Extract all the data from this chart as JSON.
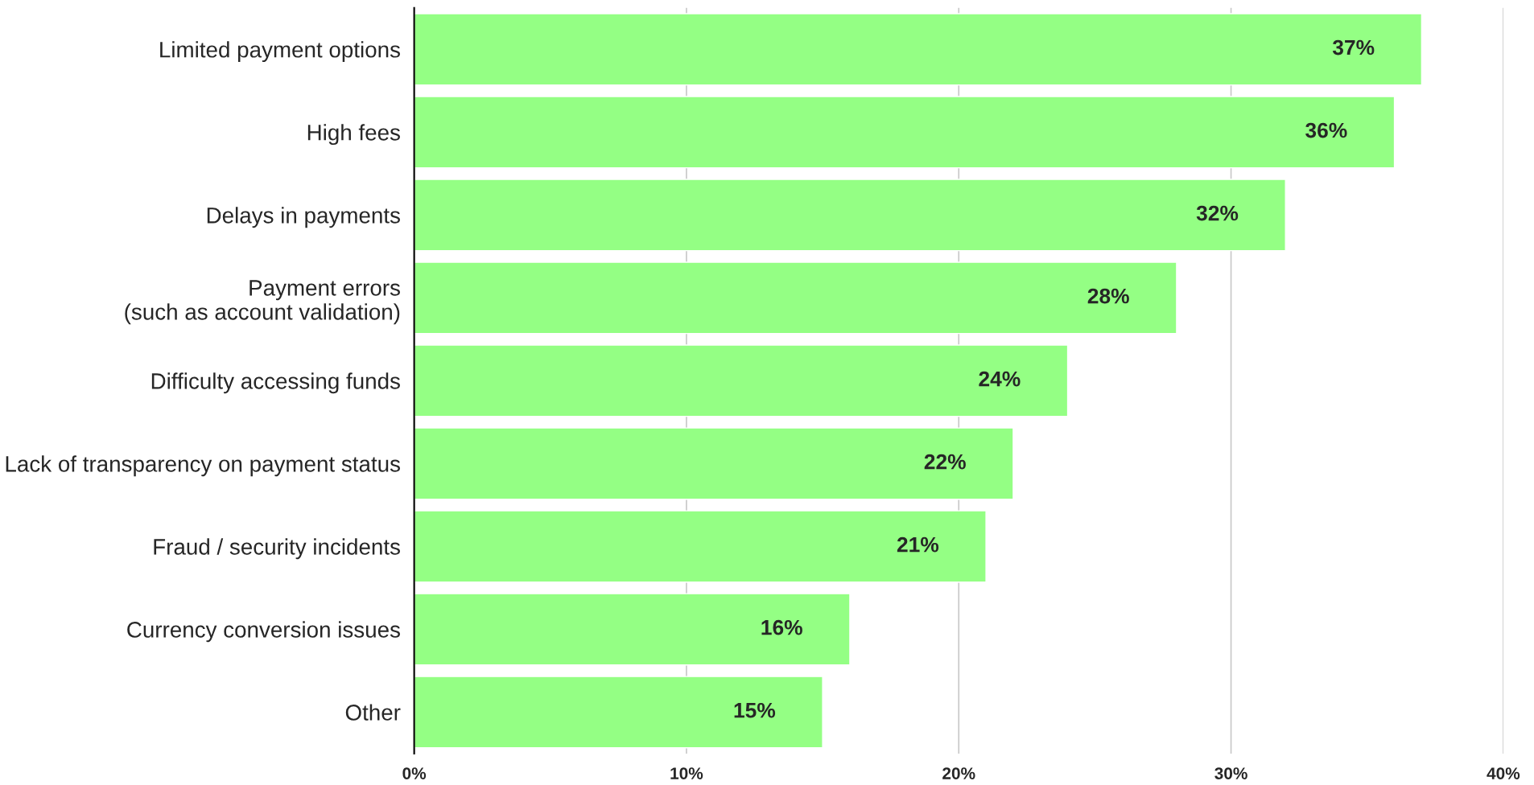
{
  "chart_data": {
    "type": "bar",
    "orientation": "horizontal",
    "categories": [
      "Limited payment options",
      "High fees",
      "Delays in payments",
      "Payment errors\n(such as account validation)",
      "Difficulty accessing funds",
      "Lack of transparency on payment status",
      "Fraud / security incidents",
      "Currency conversion issues",
      "Other"
    ],
    "values": [
      37,
      36,
      32,
      28,
      24,
      22,
      21,
      16,
      15
    ],
    "value_labels": [
      "37%",
      "36%",
      "32%",
      "28%",
      "24%",
      "22%",
      "21%",
      "16%",
      "15%"
    ],
    "color": "#94ff84",
    "xlim": [
      0,
      40
    ],
    "xticks": [
      {
        "value": 0,
        "label": "0%"
      },
      {
        "value": 10,
        "label": "10%"
      },
      {
        "value": 20,
        "label": "20%"
      },
      {
        "value": 30,
        "label": "30%"
      },
      {
        "value": 40,
        "label": "40%"
      }
    ],
    "grid": "x",
    "legend": false
  }
}
